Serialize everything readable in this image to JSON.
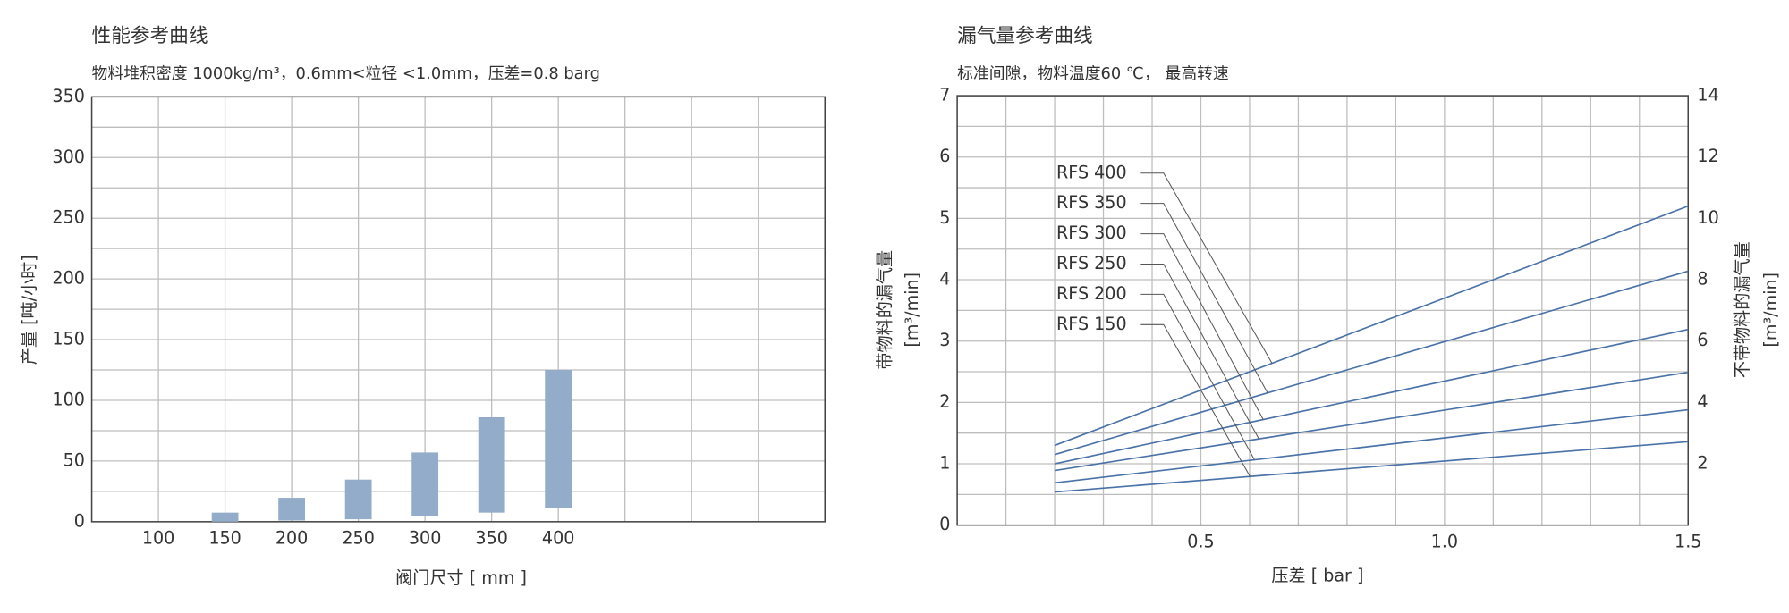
{
  "chart_data": [
    {
      "type": "range-bar",
      "title": "性能参考曲线",
      "subtitle": "物料堆积密度 1000kg/m³，0.6mm<粒径 <1.0mm，压差=0.8 barg",
      "y_label": "产量 [吨/小时]",
      "x_label": "阀门尺寸 [ mm ]",
      "x": [
        150,
        200,
        250,
        300,
        350,
        400
      ],
      "low": [
        0,
        1,
        2,
        4.7,
        7.5,
        11
      ],
      "high": [
        7.5,
        19.7,
        34.7,
        57,
        86,
        125
      ],
      "color": "#93acc9",
      "xlim": [
        50,
        600
      ],
      "xticks": [
        100,
        150,
        200,
        250,
        300,
        350,
        400
      ],
      "ylim": [
        0,
        350
      ],
      "yticks": [
        0,
        50,
        100,
        150,
        200,
        250,
        300,
        350
      ],
      "grid": true,
      "grid_x_step": 50,
      "grid_y_minor": true
    },
    {
      "type": "line",
      "title": "漏气量参考曲线",
      "subtitle": "标准间隙，物料温度60 ℃， 最高转速",
      "y_label": [
        "带物料的漏气量",
        "[m³/min]"
      ],
      "y2_label": [
        "不带物料的漏气量",
        "[m³/min]"
      ],
      "x_label": "压差 [ bar ]",
      "x": [
        0.2,
        1.5
      ],
      "series": [
        {
          "name": "RFS 400",
          "color": "#4a72a8",
          "values": [
            1.3,
            5.2
          ]
        },
        {
          "name": "RFS 350",
          "color": "#4a72a8",
          "values": [
            1.15,
            4.14
          ]
        },
        {
          "name": "RFS 300",
          "color": "#4a72a8",
          "values": [
            1.0,
            3.19
          ]
        },
        {
          "name": "RFS 250",
          "color": "#4a72a8",
          "values": [
            0.89,
            2.49
          ]
        },
        {
          "name": "RFS 200",
          "color": "#4a72a8",
          "values": [
            0.69,
            1.88
          ]
        },
        {
          "name": "RFS 150",
          "color": "#4a72a8",
          "values": [
            0.54,
            1.36
          ]
        }
      ],
      "xlim": [
        0,
        1.5
      ],
      "xticks": [
        0.5,
        {
          "value": 1.0,
          "label": "1.0"
        },
        1.5
      ],
      "ylim": [
        0,
        7
      ],
      "yticks": [
        0,
        1,
        2,
        3,
        4,
        5,
        6,
        7
      ],
      "y2lim": [
        0,
        14
      ],
      "y2ticks": [
        2,
        4,
        6,
        8,
        10,
        12,
        14
      ],
      "grid": true,
      "grid_x_step": 0.1,
      "grid_y_minor": true
    }
  ]
}
